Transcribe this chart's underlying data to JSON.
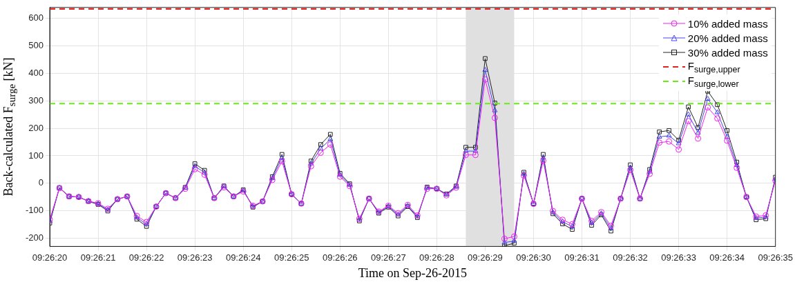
{
  "chart_data": {
    "type": "line",
    "xlabel": "Time on Sep-26-2015",
    "ylabel": "Back-calculated F$_{surge}$ [kN]",
    "x": [
      9.4388889,
      9.4389444,
      9.439,
      9.4390556,
      9.4391111,
      9.4391667,
      9.4392222,
      9.4392778,
      9.4393333,
      9.4393889,
      9.4394444,
      9.4395,
      9.4395556,
      9.4396111,
      9.4396667,
      9.4397222,
      9.4397778,
      9.4398333,
      9.4398889,
      9.4399444,
      9.44,
      9.4400556,
      9.4401111,
      9.4401667,
      9.4402222,
      9.4402778,
      9.4403333,
      9.4403889,
      9.4404444,
      9.4405,
      9.4405556,
      9.4406111,
      9.4406667,
      9.4407222,
      9.4407778,
      9.4408333,
      9.4408889,
      9.4409444,
      9.441,
      9.4410556,
      9.4411111,
      9.4411667,
      9.4412222,
      9.4412778,
      9.4413333,
      9.4413889,
      9.4414444,
      9.4415,
      9.4415556,
      9.4416111,
      9.4416667,
      9.4417222,
      9.4417778,
      9.4418333,
      9.4418889,
      9.4419444,
      9.442,
      9.4420556,
      9.4421111,
      9.4421667,
      9.4422222,
      9.4422778,
      9.4423333,
      9.4423889,
      9.4424444,
      9.4425,
      9.4425556,
      9.4426111,
      9.4426667,
      9.4427222,
      9.4427778,
      9.4428333,
      9.4428889,
      9.4429444,
      9.443,
      9.4430556
    ],
    "series": [
      {
        "name": "10% added mass",
        "color": "#ee22ee",
        "marker": "circle",
        "values": [
          -132,
          -18,
          -48,
          -50,
          -65,
          -73,
          -93,
          -58,
          -48,
          -119,
          -141,
          -85,
          -36,
          -54,
          -20,
          51,
          31,
          -54,
          -15,
          -48,
          -30,
          -82,
          -66,
          12,
          80,
          -40,
          -74,
          62,
          111,
          141,
          24,
          -10,
          -129,
          -56,
          -103,
          -82,
          -109,
          -79,
          -117,
          -20,
          -20,
          -44,
          -16,
          103,
          103,
          378,
          238,
          -202,
          -194,
          28,
          -75,
          82,
          -101,
          -133,
          -149,
          -56,
          -137,
          -105,
          -155,
          -56,
          48,
          -56,
          34,
          148,
          152,
          123,
          226,
          163,
          276,
          236,
          155,
          56,
          -50,
          -121,
          -117,
          10
        ]
      },
      {
        "name": "20% added mass",
        "color": "#4444ee",
        "marker": "triangle",
        "values": [
          -138,
          -17,
          -48,
          -50,
          -65,
          -75,
          -97,
          -58,
          -48,
          -125,
          -149,
          -85,
          -36,
          -54,
          -17,
          62,
          39,
          -54,
          -12,
          -48,
          -27,
          -84,
          -66,
          18,
          92,
          -40,
          -74,
          72,
          126,
          160,
          30,
          -6,
          -133,
          -56,
          -106,
          -84,
          -114,
          -82,
          -121,
          -17,
          -20,
          -41,
          -13,
          117,
          117,
          412,
          265,
          -216,
          -210,
          34,
          -75,
          93,
          -106,
          -140,
          -158,
          -56,
          -145,
          -110,
          -164,
          -56,
          57,
          -56,
          42,
          169,
          173,
          145,
          250,
          184,
          307,
          258,
          169,
          66,
          -50,
          -127,
          -123,
          16
        ]
      },
      {
        "name": "30% added mass",
        "color": "#222222",
        "marker": "square",
        "values": [
          -145,
          -16,
          -48,
          -50,
          -66,
          -77,
          -101,
          -58,
          -48,
          -131,
          -157,
          -85,
          -36,
          -54,
          -15,
          71,
          47,
          -54,
          -10,
          -48,
          -24,
          -87,
          -66,
          24,
          105,
          -40,
          -74,
          81,
          141,
          178,
          36,
          -2,
          -137,
          -56,
          -109,
          -87,
          -119,
          -85,
          -125,
          -14,
          -20,
          -39,
          -10,
          131,
          131,
          454,
          292,
          -228,
          -218,
          40,
          -75,
          105,
          -111,
          -148,
          -168,
          -56,
          -153,
          -115,
          -174,
          -56,
          67,
          -56,
          50,
          187,
          192,
          157,
          278,
          203,
          335,
          286,
          192,
          77,
          -50,
          -133,
          -129,
          22
        ]
      }
    ],
    "ref_lines": [
      {
        "axis": "y",
        "value": 635,
        "label": "F$_{surge,upper}$",
        "color": "#dd2222",
        "line_style": "dashed"
      },
      {
        "axis": "y",
        "value": 290,
        "label": "F$_{surge,lower}$",
        "color": "#66ee11",
        "line_style": "dashed"
      }
    ],
    "bands": [
      {
        "axis": "x",
        "from": 9.4412778,
        "to": 9.4415556,
        "color": "#e0e0e0"
      }
    ],
    "xlim": [
      9.4388889,
      9.4430556
    ],
    "xticks": [
      {
        "value": 9.4388889,
        "label": "09:26:20"
      },
      {
        "value": 9.4391667,
        "label": "09:26:21"
      },
      {
        "value": 9.4394444,
        "label": "09:26:22"
      },
      {
        "value": 9.4397222,
        "label": "09:26:23"
      },
      {
        "value": 9.44,
        "label": "09:26:24"
      },
      {
        "value": 9.4402778,
        "label": "09:26:25"
      },
      {
        "value": 9.4405556,
        "label": "09:26:26"
      },
      {
        "value": 9.4408333,
        "label": "09:26:27"
      },
      {
        "value": 9.4411111,
        "label": "09:26:28"
      },
      {
        "value": 9.4413889,
        "label": "09:26:29"
      },
      {
        "value": 9.4416667,
        "label": "09:26:30"
      },
      {
        "value": 9.4419444,
        "label": "09:26:31"
      },
      {
        "value": 9.4422222,
        "label": "09:26:32"
      },
      {
        "value": 9.4425,
        "label": "09:26:33"
      },
      {
        "value": 9.4427778,
        "label": "09:26:34"
      },
      {
        "value": 9.4430556,
        "label": "09:26:35"
      }
    ],
    "ylim": [
      -230,
      640
    ],
    "yticks": [
      -200,
      -100,
      0,
      100,
      200,
      300,
      400,
      500,
      600
    ],
    "grid": true,
    "legend": "top right"
  }
}
